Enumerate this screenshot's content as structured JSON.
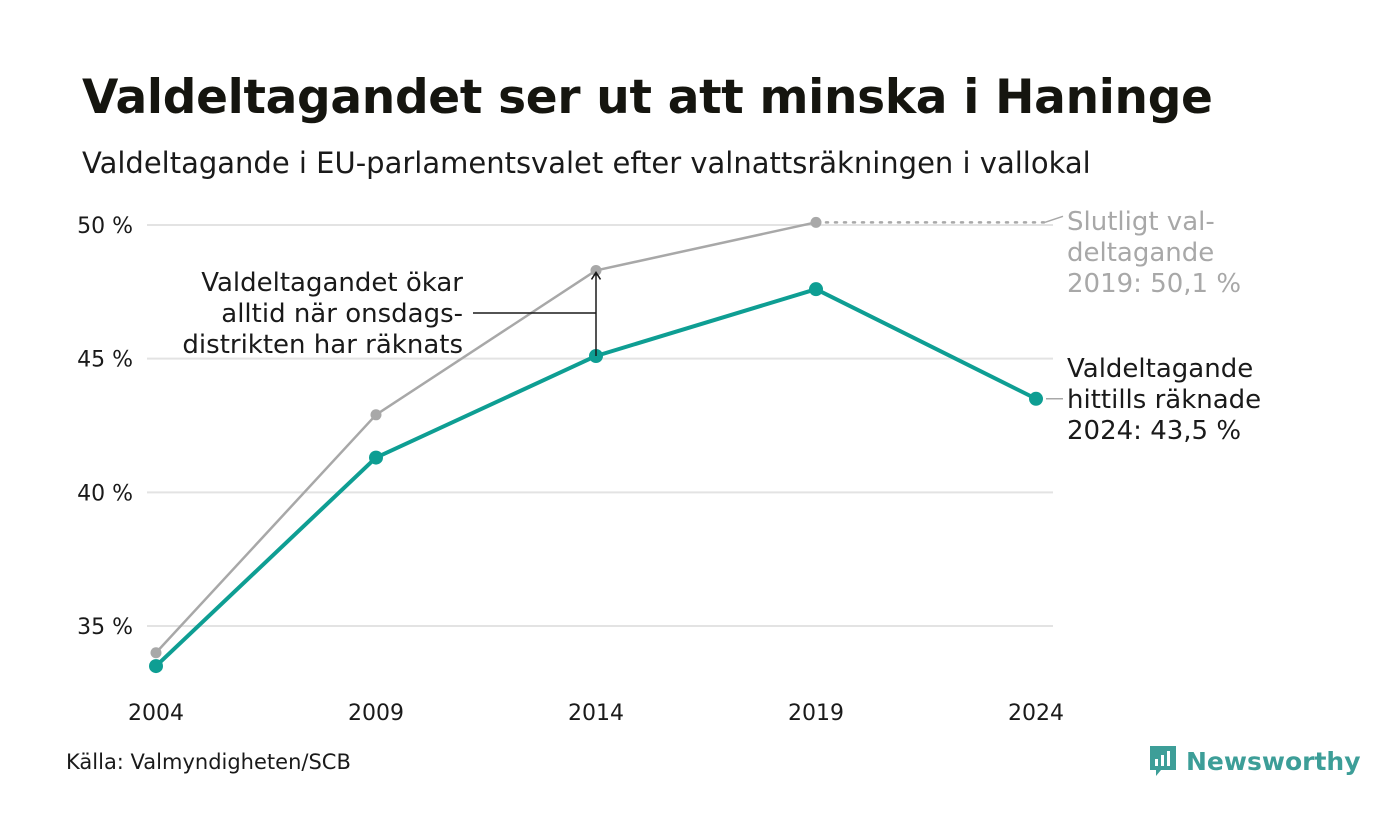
{
  "title": "Valdeltagandet ser ut att minska i Haninge",
  "subtitle": "Valdeltagande i EU-parlamentsvalet efter valnattsräkningen i vallokal",
  "source": "Källa: Valmyndigheten/SCB",
  "brand": "Newsworthy",
  "colors": {
    "counted_line": "#0e9e93",
    "final_line": "#a8a8a8",
    "grid": "#e3e3e3",
    "text": "#1a1a1a",
    "muted_text": "#a8a8a8",
    "brand": "#3d9e98"
  },
  "chart_data": {
    "type": "line",
    "x": [
      "2004",
      "2009",
      "2014",
      "2019",
      "2024"
    ],
    "ylim": [
      33.5,
      50.5
    ],
    "yticks": [
      35,
      40,
      45,
      50
    ],
    "ytick_labels": [
      "35 %",
      "40 %",
      "45 %",
      "50 %"
    ],
    "grid": true,
    "series": [
      {
        "key": "final",
        "values": [
          34.0,
          42.9,
          48.3,
          50.1,
          null
        ],
        "color": "#a8a8a8"
      },
      {
        "key": "counted",
        "values": [
          33.5,
          41.3,
          45.1,
          47.6,
          43.5
        ],
        "color": "#0e9e93"
      }
    ],
    "annotations": {
      "final": [
        "Slutligt val-",
        "deltagande",
        "2019: 50,1 %"
      ],
      "counted": [
        "Valdeltagande",
        "hittills räknade",
        "2024: 43,5 %"
      ],
      "gap": [
        "Valdeltagandet ökar",
        "alltid när onsdags-",
        "distrikten har räknats"
      ]
    }
  }
}
